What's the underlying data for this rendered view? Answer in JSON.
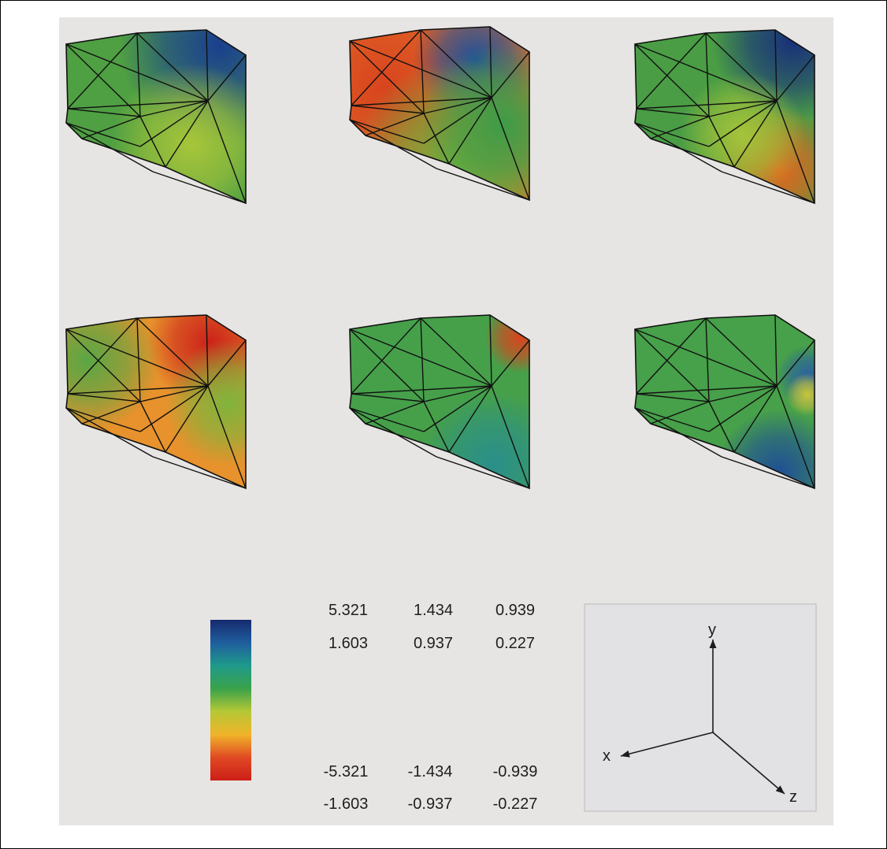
{
  "legend": {
    "top_rows": [
      [
        "5.321",
        "1.434",
        "0.939"
      ],
      [
        "1.603",
        "0.937",
        "0.227"
      ]
    ],
    "bottom_rows": [
      [
        "-5.321",
        "-1.434",
        "-0.939"
      ],
      [
        "-1.603",
        "-0.937",
        "-0.227"
      ]
    ],
    "colorbar_stops": [
      "#162a6e",
      "#1f5e9e",
      "#1f9a8a",
      "#3aa24a",
      "#b6c836",
      "#f0b42a",
      "#e04a24",
      "#cc1e16"
    ]
  },
  "axes": {
    "x": "x",
    "y": "y",
    "z": "z"
  },
  "panels": [
    {
      "fill": "#4f9f43",
      "hot": [
        {
          "fx": 0.85,
          "fy": 0.08,
          "r": 0.55,
          "color": "#1a3f8f"
        },
        {
          "fx": 0.7,
          "fy": 0.65,
          "r": 0.45,
          "color": "#a7c53a"
        }
      ]
    },
    {
      "fill": "#e0712a",
      "hot": [
        {
          "fx": 0.2,
          "fy": 0.35,
          "r": 0.55,
          "color": "#d9441e"
        },
        {
          "fx": 0.7,
          "fy": 0.18,
          "r": 0.35,
          "color": "#1e4f9a"
        },
        {
          "fx": 0.6,
          "fy": 0.8,
          "r": 0.6,
          "color": "#6fae3d"
        },
        {
          "fx": 0.85,
          "fy": 0.55,
          "r": 0.45,
          "color": "#3d9c48"
        }
      ]
    },
    {
      "fill": "#4a9d45",
      "hot": [
        {
          "fx": 0.88,
          "fy": 0.05,
          "r": 0.45,
          "color": "#182f7a"
        },
        {
          "fx": 0.8,
          "fy": 0.8,
          "r": 0.35,
          "color": "#e4641e"
        },
        {
          "fx": 0.6,
          "fy": 0.6,
          "r": 0.35,
          "color": "#a5c43a"
        }
      ]
    },
    {
      "fill": "#e7922c",
      "hot": [
        {
          "fx": 0.8,
          "fy": 0.15,
          "r": 0.35,
          "color": "#cc231a"
        },
        {
          "fx": 0.12,
          "fy": 0.25,
          "r": 0.4,
          "color": "#5aa644"
        },
        {
          "fx": 0.9,
          "fy": 0.5,
          "r": 0.35,
          "color": "#7fb43c"
        }
      ]
    },
    {
      "fill": "#46a04a",
      "hot": [
        {
          "fx": 0.95,
          "fy": 0.12,
          "r": 0.2,
          "color": "#d8451e"
        },
        {
          "fx": 0.8,
          "fy": 0.85,
          "r": 0.4,
          "color": "#2a8f8a"
        }
      ]
    },
    {
      "fill": "#47a04a",
      "hot": [
        {
          "fx": 0.97,
          "fy": 0.35,
          "r": 0.18,
          "color": "#2a5fa0"
        },
        {
          "fx": 0.8,
          "fy": 0.9,
          "r": 0.35,
          "color": "#1f4f95"
        },
        {
          "fx": 0.96,
          "fy": 0.45,
          "r": 0.12,
          "color": "#c9c63a"
        }
      ]
    }
  ]
}
